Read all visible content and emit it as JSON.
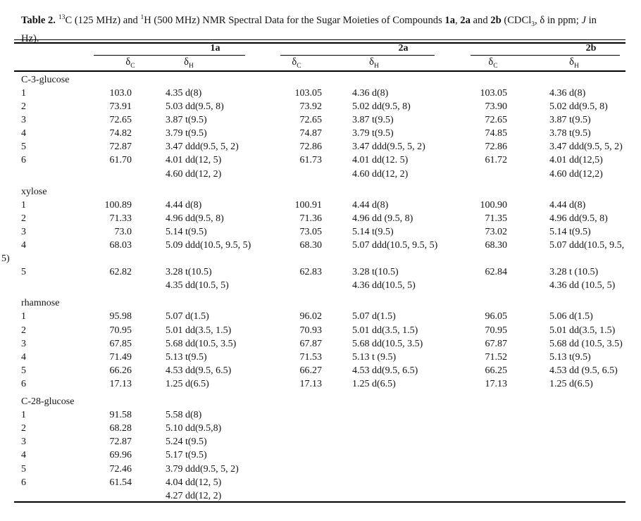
{
  "title": {
    "label_bold": "Table 2.",
    "sup_13": "13",
    "after_13c": "C (125 MHz) and ",
    "sup_1": "1",
    "after_1h": "H (500 MHz) NMR Spectral Data for the Sugar Moieties of Compounds ",
    "compound_1a": "1a",
    "comma": ", ",
    "compound_2a": "2a",
    "and_word": " and ",
    "compound_2b": "2b",
    "cdcl_open": " (CDCl",
    "cdcl_sub": "3",
    "after_cdcl": ", δ in ppm; ",
    "j_symbol": "J",
    "after_j": " in",
    "tail_line2": "Hz)."
  },
  "header": {
    "groups": [
      "1a",
      "2a",
      "2b"
    ],
    "delta": "δ",
    "sub_c": "C",
    "sub_h": "H"
  },
  "table": {
    "sections": [
      {
        "name": "C-3-glucose",
        "rows": [
          {
            "label": "1",
            "a_c": "103.0",
            "a_h": [
              "4.35 d(8)"
            ],
            "b_c": "103.05",
            "b_h": [
              "4.36 d(8)"
            ],
            "c_c": "103.05",
            "c_h": [
              "4.36 d(8)"
            ]
          },
          {
            "label": "2",
            "a_c": "73.91",
            "a_h": [
              "5.03 dd(9.5, 8)"
            ],
            "b_c": "73.92",
            "b_h": [
              "5.02 dd(9.5, 8)"
            ],
            "c_c": "73.90",
            "c_h": [
              "5.02 dd(9.5, 8)"
            ]
          },
          {
            "label": "3",
            "a_c": "72.65",
            "a_h": [
              "3.87 t(9.5)"
            ],
            "b_c": "72.65",
            "b_h": [
              "3.87 t(9.5)"
            ],
            "c_c": "72.65",
            "c_h": [
              "3.87 t(9.5)"
            ]
          },
          {
            "label": "4",
            "a_c": "74.82",
            "a_h": [
              "3.79 t(9.5)"
            ],
            "b_c": "74.87",
            "b_h": [
              "3.79 t(9.5)"
            ],
            "c_c": "74.85",
            "c_h": [
              "3.78 t(9.5)"
            ]
          },
          {
            "label": "5",
            "a_c": "72.87",
            "a_h": [
              "3.47 ddd(9.5, 5, 2)"
            ],
            "b_c": "72.86",
            "b_h": [
              "3.47 ddd(9.5, 5, 2)"
            ],
            "c_c": "72.86",
            "c_h": [
              "3.47 ddd(9.5, 5, 2)"
            ]
          },
          {
            "label": "6",
            "a_c": "61.70",
            "a_h": [
              "4.01 dd(12, 5)",
              "4.60 dd(12, 2)"
            ],
            "b_c": "61.73",
            "b_h": [
              "4.01 dd(12. 5)",
              "4.60 dd(12, 2)"
            ],
            "c_c": "61.72",
            "c_h": [
              "4.01 dd(12,5)",
              "4.60 dd(12,2)"
            ]
          }
        ]
      },
      {
        "name": "xylose",
        "rows": [
          {
            "label": "1",
            "a_c": "100.89",
            "a_h": [
              "4.44 d(8)"
            ],
            "b_c": "100.91",
            "b_h": [
              "4.44 d(8)"
            ],
            "c_c": "100.90",
            "c_h": [
              "4.44 d(8)"
            ]
          },
          {
            "label": "2",
            "a_c": "71.33",
            "a_h": [
              "4.96 dd(9.5, 8)"
            ],
            "b_c": "71.36",
            "b_h": [
              "4.96 dd (9.5, 8)"
            ],
            "c_c": "71.35",
            "c_h": [
              "4.96 dd(9.5, 8)"
            ]
          },
          {
            "label": "3",
            "a_c": "73.0",
            "a_h": [
              "5.14 t(9.5)"
            ],
            "b_c": "73.05",
            "b_h": [
              "5.14 t(9.5)"
            ],
            "c_c": "73.02",
            "c_h": [
              "5.14 t(9.5)"
            ]
          },
          {
            "label": "4",
            "a_c": "68.03",
            "a_h": [
              "5.09 ddd(10.5, 9.5, 5)"
            ],
            "b_c": "68.30",
            "b_h": [
              "5.07 ddd(10.5, 9.5, 5)"
            ],
            "c_c": "68.30",
            "c_h": [
              "5.07 ddd(10.5, 9.5,"
            ]
          },
          {
            "wrap": "5)"
          },
          {
            "label": "5",
            "a_c": "62.82",
            "a_h": [
              "3.28 t(10.5)",
              "4.35 dd(10.5, 5)"
            ],
            "b_c": "62.83",
            "b_h": [
              "3.28 t(10.5)",
              "4.36 dd(10.5, 5)"
            ],
            "c_c": "62.84",
            "c_h": [
              "3.28 t (10.5)",
              "4.36 dd (10.5, 5)"
            ]
          }
        ]
      },
      {
        "name": "rhamnose",
        "rows": [
          {
            "label": "1",
            "a_c": "95.98",
            "a_h": [
              "5.07 d(1.5)"
            ],
            "b_c": "96.02",
            "b_h": [
              "5.07 d(1.5)"
            ],
            "c_c": "96.05",
            "c_h": [
              "5.06 d(1.5)"
            ]
          },
          {
            "label": "2",
            "a_c": "70.95",
            "a_h": [
              "5.01 dd(3.5, 1.5)"
            ],
            "b_c": "70.93",
            "b_h": [
              "5.01 dd(3.5, 1.5)"
            ],
            "c_c": "70.95",
            "c_h": [
              "5.01 dd(3.5, 1.5)"
            ]
          },
          {
            "label": "3",
            "a_c": "67.85",
            "a_h": [
              "5.68 dd(10.5, 3.5)"
            ],
            "b_c": "67.87",
            "b_h": [
              "5.68 dd(10.5, 3.5)"
            ],
            "c_c": "67.87",
            "c_h": [
              "5.68 dd (10.5, 3.5)"
            ]
          },
          {
            "label": "4",
            "a_c": "71.49",
            "a_h": [
              "5.13 t(9.5)"
            ],
            "b_c": "71.53",
            "b_h": [
              "5.13 t (9.5)"
            ],
            "c_c": "71.52",
            "c_h": [
              "5.13 t(9.5)"
            ]
          },
          {
            "label": "5",
            "a_c": "66.26",
            "a_h": [
              "4.53 dd(9.5, 6.5)"
            ],
            "b_c": "66.27",
            "b_h": [
              "4.53 dd(9.5, 6.5)"
            ],
            "c_c": "66.25",
            "c_h": [
              "4.53 dd (9.5, 6.5)"
            ]
          },
          {
            "label": "6",
            "a_c": "17.13",
            "a_h": [
              "1.25 d(6.5)"
            ],
            "b_c": "17.13",
            "b_h": [
              "1.25 d(6.5)"
            ],
            "c_c": "17.13",
            "c_h": [
              "1.25 d(6.5)"
            ]
          }
        ]
      },
      {
        "name": "C-28-glucose",
        "rows": [
          {
            "label": "1",
            "a_c": "91.58",
            "a_h": [
              "5.58 d(8)"
            ]
          },
          {
            "label": "2",
            "a_c": "68.28",
            "a_h": [
              "5.10 dd(9.5,8)"
            ]
          },
          {
            "label": "3",
            "a_c": "72.87",
            "a_h": [
              "5.24 t(9.5)"
            ]
          },
          {
            "label": "4",
            "a_c": "69.96",
            "a_h": [
              "5.17 t(9.5)"
            ]
          },
          {
            "label": "5",
            "a_c": "72.46",
            "a_h": [
              "3.79 ddd(9.5, 5, 2)"
            ]
          },
          {
            "label": "6",
            "a_c": "61.54",
            "a_h": [
              "4.04 dd(12, 5)",
              "4.27 dd(12, 2)"
            ]
          }
        ]
      }
    ]
  }
}
